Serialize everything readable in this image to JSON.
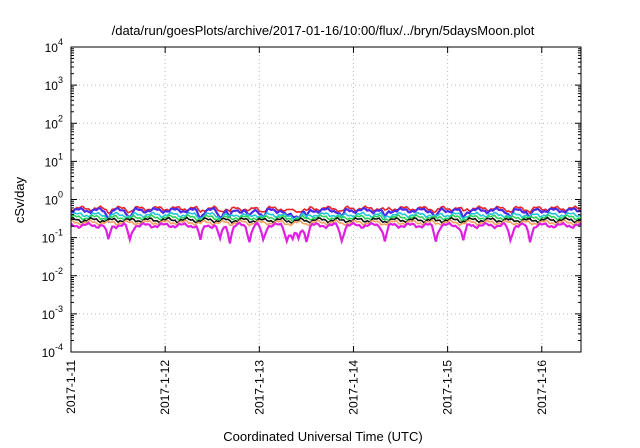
{
  "chart_data": {
    "type": "line",
    "title": "/data/run/goesPlots/archive/2017-01-16/10:00/flux/../bryn/5daysMoon.plot",
    "xlabel": "Coordinated Universal Time (UTC)",
    "ylabel": "cSv/day",
    "y_scale": "log",
    "ylim": [
      0.0001,
      10000
    ],
    "y_ticks": [
      {
        "value": 0.0001,
        "base": "10",
        "exp": "-4"
      },
      {
        "value": 0.001,
        "base": "10",
        "exp": "-3"
      },
      {
        "value": 0.01,
        "base": "10",
        "exp": "-2"
      },
      {
        "value": 0.1,
        "base": "10",
        "exp": "-1"
      },
      {
        "value": 1,
        "base": "10",
        "exp": "0"
      },
      {
        "value": 10,
        "base": "10",
        "exp": "1"
      },
      {
        "value": 100,
        "base": "10",
        "exp": "2"
      },
      {
        "value": 1000,
        "base": "10",
        "exp": "3"
      },
      {
        "value": 10000,
        "base": "10",
        "exp": "4"
      }
    ],
    "xlim": [
      "2017-01-11T00:00",
      "2017-01-16T10:00"
    ],
    "x_ticks": [
      {
        "value": "2017-01-11T00:00",
        "label": "2017-1-11"
      },
      {
        "value": "2017-01-12T00:00",
        "label": "2017-1-12"
      },
      {
        "value": "2017-01-13T00:00",
        "label": "2017-1-13"
      },
      {
        "value": "2017-01-14T00:00",
        "label": "2017-1-14"
      },
      {
        "value": "2017-01-15T00:00",
        "label": "2017-1-15"
      },
      {
        "value": "2017-01-16T00:00",
        "label": "2017-1-16"
      }
    ],
    "grid": true,
    "legend": "none",
    "series": [
      {
        "color": "#e8242a",
        "base": 0.58,
        "dip_scale": 0.15,
        "fill": false
      },
      {
        "color": "#4a2ae8",
        "base": 0.52,
        "dip_scale": 0.35,
        "fill": true
      },
      {
        "color": "#22c5d8",
        "base": 0.4,
        "dip_scale": 0.15,
        "fill": false
      },
      {
        "color": "#2bd35a",
        "base": 0.34,
        "dip_scale": 0.1,
        "fill": false
      },
      {
        "color": "#111111",
        "base": 0.29,
        "dip_scale": 0.05,
        "fill": false
      },
      {
        "color": "#f0a060",
        "base": 0.25,
        "dip_scale": 0.05,
        "fill": false
      },
      {
        "color": "#e020e0",
        "base": 0.21,
        "dip_scale": 0.6,
        "fill": true
      }
    ],
    "dip_times": [
      "2017-01-11T09:30",
      "2017-01-11T15:00",
      "2017-01-12T09:00",
      "2017-01-12T14:00",
      "2017-01-12T16:30",
      "2017-01-12T21:30",
      "2017-01-13T01:00",
      "2017-01-13T07:00",
      "2017-01-13T08:30",
      "2017-01-13T10:00",
      "2017-01-13T12:00",
      "2017-01-13T21:00",
      "2017-01-14T08:00",
      "2017-01-14T21:00",
      "2017-01-15T04:00",
      "2017-01-15T16:00",
      "2017-01-15T21:00"
    ]
  }
}
